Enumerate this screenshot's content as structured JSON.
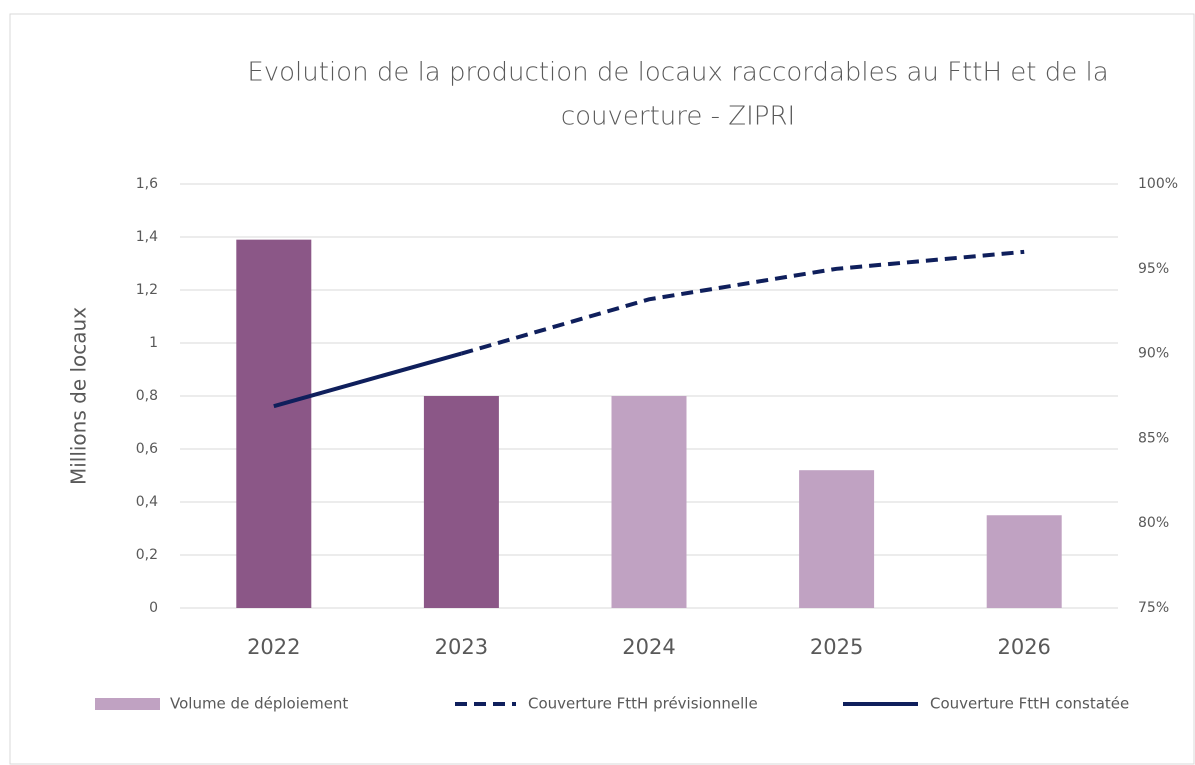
{
  "chart_data": {
    "type": "bar-line",
    "title": [
      "Evolution de la production de locaux raccordables au FttH et de la",
      "couverture - ZIPRI"
    ],
    "y_label": "Millions de locaux",
    "categories": [
      "2022",
      "2023",
      "2024",
      "2025",
      "2026"
    ],
    "series": [
      {
        "name": "Volume de déploiement",
        "type": "bar",
        "color": "#c0a2c2",
        "colors": [
          "#8b5787",
          "#8b5787",
          "#c0a2c2",
          "#c0a2c2",
          "#c0a2c2"
        ],
        "values": [
          1.39,
          0.8,
          0.8,
          0.52,
          0.35
        ]
      },
      {
        "name": "Couverture FttH prévisionnelle",
        "type": "line",
        "dash": true,
        "axis": "y2",
        "color": "#0f1f5c",
        "values": [
          null,
          90,
          93.2,
          95,
          96
        ]
      },
      {
        "name": "Couverture FttH constatée",
        "type": "line",
        "dash": false,
        "axis": "y2",
        "color": "#0f1f5c",
        "values": [
          86.9,
          90,
          null,
          null,
          null
        ]
      }
    ],
    "ylim": [
      0,
      1.6
    ],
    "yticks": [
      0,
      {
        "value": 0.2,
        "label": "0,2"
      },
      {
        "value": 0.4,
        "label": "0,4"
      },
      {
        "value": 0.6,
        "label": "0,6"
      },
      {
        "value": 0.8,
        "label": "0,8"
      },
      1,
      {
        "value": 1.2,
        "label": "1,2"
      },
      {
        "value": 1.4,
        "label": "1,4"
      },
      {
        "value": 1.6,
        "label": "1,6"
      }
    ],
    "y2lim": [
      75,
      100
    ],
    "y2ticks": [
      {
        "value": 75,
        "label": "75%"
      },
      {
        "value": 80,
        "label": "80%"
      },
      {
        "value": 85,
        "label": "85%"
      },
      {
        "value": 90,
        "label": "90%"
      },
      {
        "value": 95,
        "label": "95%"
      },
      {
        "value": 100,
        "label": "100%"
      }
    ],
    "grid": true,
    "legend": "bottom"
  }
}
